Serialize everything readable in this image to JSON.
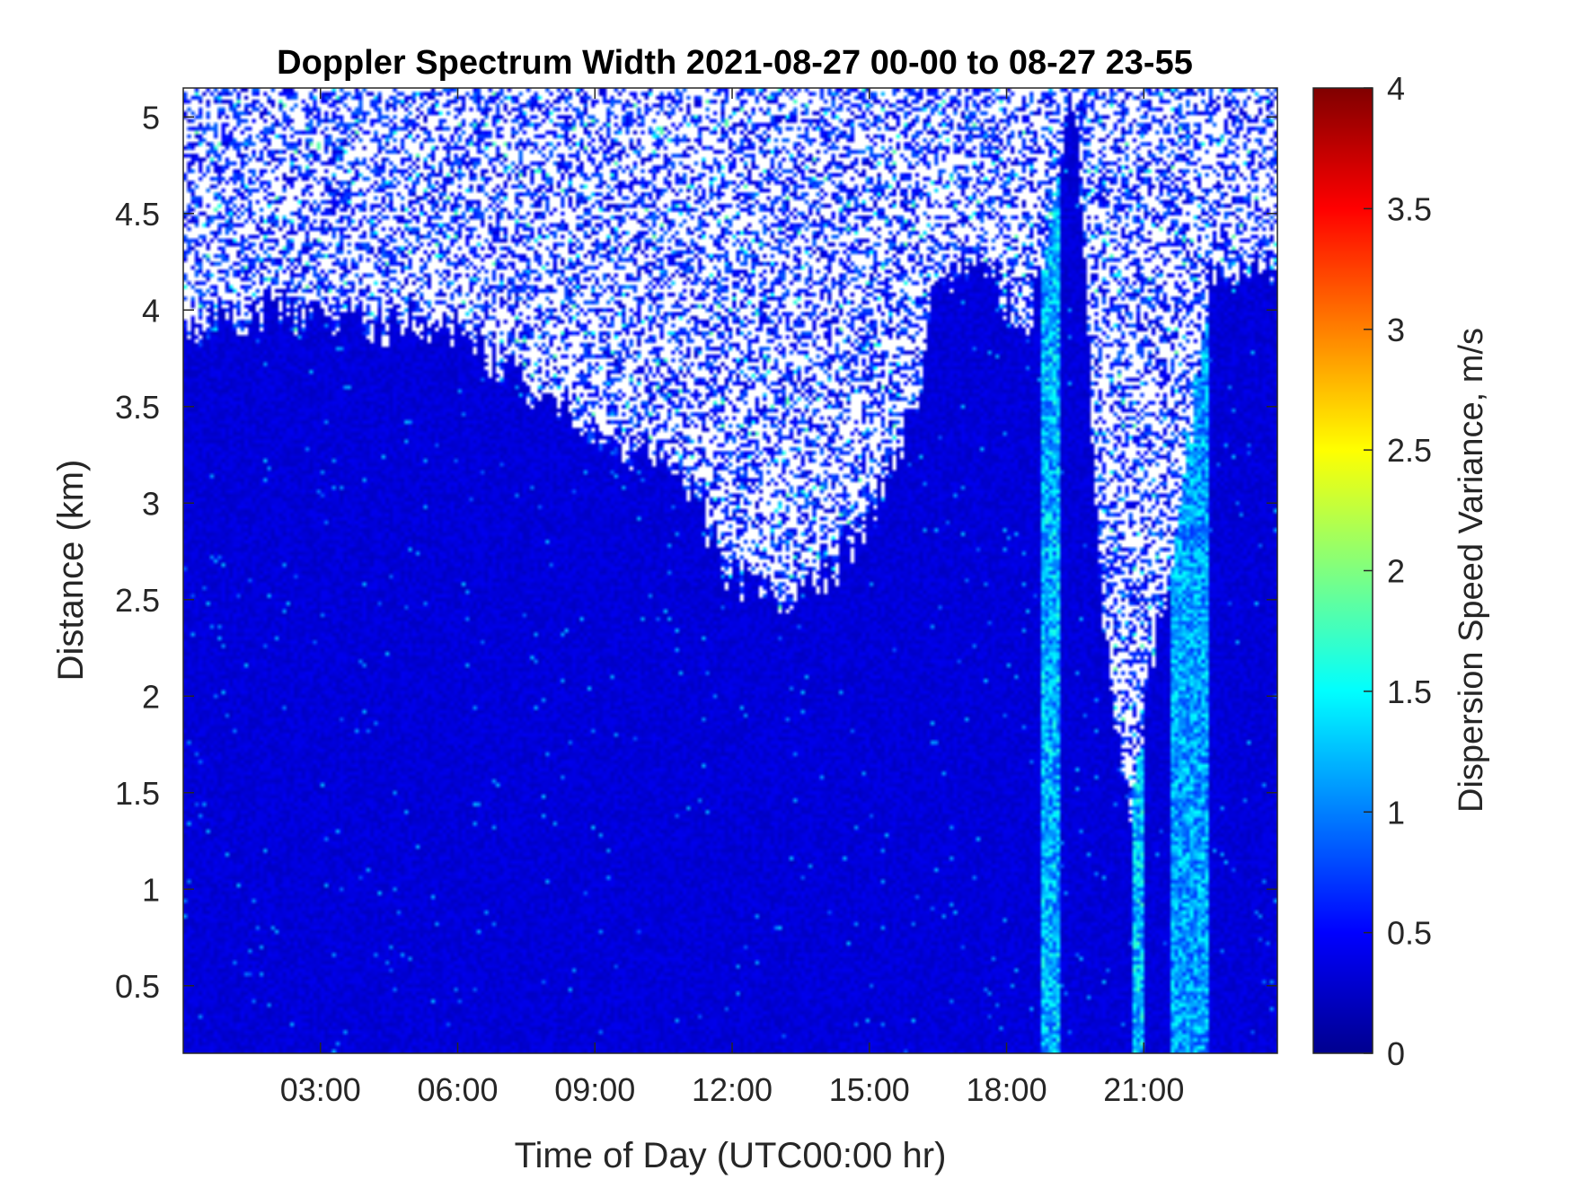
{
  "chart_data": {
    "type": "heatmap",
    "title": "Doppler Spectrum Width 2021-08-27 00-00 to 08-27 23-55",
    "xlabel": "Time of Day (UTC00:00 hr)",
    "ylabel": "Distance (km)",
    "xlim": [
      0,
      23.92
    ],
    "ylim": [
      0.15,
      5.15
    ],
    "x_ticks": [
      {
        "value": 3,
        "label": "03:00"
      },
      {
        "value": 6,
        "label": "06:00"
      },
      {
        "value": 9,
        "label": "09:00"
      },
      {
        "value": 12,
        "label": "12:00"
      },
      {
        "value": 15,
        "label": "15:00"
      },
      {
        "value": 18,
        "label": "18:00"
      },
      {
        "value": 21,
        "label": "21:00"
      }
    ],
    "y_ticks": [
      {
        "value": 0.5,
        "label": "0.5"
      },
      {
        "value": 1,
        "label": "1"
      },
      {
        "value": 1.5,
        "label": "1.5"
      },
      {
        "value": 2,
        "label": "2"
      },
      {
        "value": 2.5,
        "label": "2.5"
      },
      {
        "value": 3,
        "label": "3"
      },
      {
        "value": 3.5,
        "label": "3.5"
      },
      {
        "value": 4,
        "label": "4"
      },
      {
        "value": 4.5,
        "label": "4.5"
      },
      {
        "value": 5,
        "label": "5"
      }
    ],
    "colorbar": {
      "label": "Dispersion Speed Variance, m/s",
      "colormap": "jet",
      "clim": [
        0,
        4
      ],
      "ticks": [
        {
          "value": 0,
          "label": "0"
        },
        {
          "value": 0.5,
          "label": "0.5"
        },
        {
          "value": 1,
          "label": "1"
        },
        {
          "value": 1.5,
          "label": "1.5"
        },
        {
          "value": 2,
          "label": "2"
        },
        {
          "value": 2.5,
          "label": "2.5"
        },
        {
          "value": 3,
          "label": "3"
        },
        {
          "value": 3.5,
          "label": "3.5"
        },
        {
          "value": 4,
          "label": "4"
        }
      ]
    },
    "time_step_hours": 0.0833,
    "range_gates_km": 0.1,
    "background_value": 0.35,
    "valid_data_top_km": [
      {
        "time": 0,
        "top": 3.85
      },
      {
        "time": 1,
        "top": 3.95
      },
      {
        "time": 2,
        "top": 4.0
      },
      {
        "time": 4,
        "top": 3.95
      },
      {
        "time": 6,
        "top": 3.9
      },
      {
        "time": 7.5,
        "top": 3.6
      },
      {
        "time": 9,
        "top": 3.4
      },
      {
        "time": 11,
        "top": 3.1
      },
      {
        "time": 12,
        "top": 2.6
      },
      {
        "time": 13,
        "top": 2.5
      },
      {
        "time": 14,
        "top": 2.6
      },
      {
        "time": 15,
        "top": 2.9
      },
      {
        "time": 16,
        "top": 3.5
      },
      {
        "time": 16.5,
        "top": 4.2
      },
      {
        "time": 17.5,
        "top": 4.2
      },
      {
        "time": 18.5,
        "top": 3.9
      },
      {
        "time": 19.5,
        "top": 5.15
      },
      {
        "time": 20.1,
        "top": 2.4
      },
      {
        "time": 20.7,
        "top": 1.4
      },
      {
        "time": 21.2,
        "top": 2.2
      },
      {
        "time": 21.8,
        "top": 3.0
      },
      {
        "time": 22.5,
        "top": 4.2
      },
      {
        "time": 23.9,
        "top": 4.2
      }
    ],
    "high_variance_bands": [
      {
        "time_start": 18.75,
        "time_end": 19.2,
        "value": 1.5
      },
      {
        "time_start": 20.75,
        "time_end": 21.0,
        "value": 1.6
      },
      {
        "time_start": 21.6,
        "time_end": 22.4,
        "value": 1.4
      }
    ]
  }
}
